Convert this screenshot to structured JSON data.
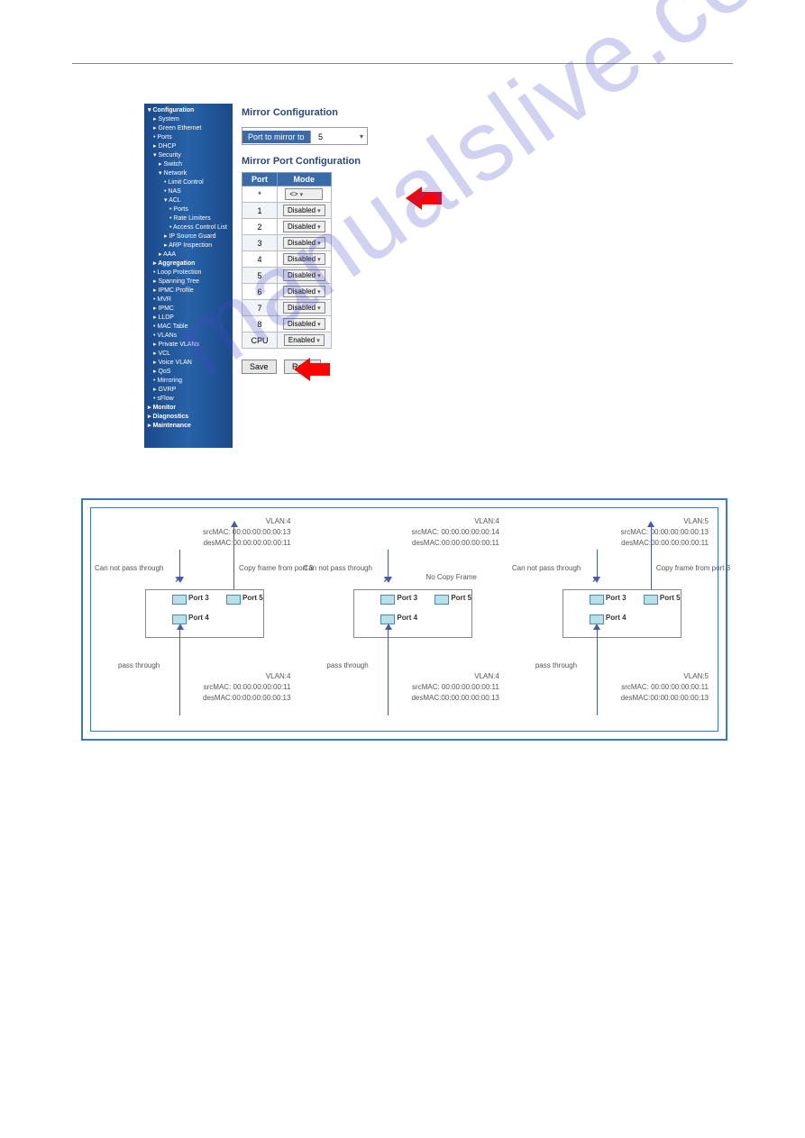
{
  "sidebar": {
    "title": "▾ Configuration",
    "items": [
      {
        "t": "▸ System",
        "c": "i1"
      },
      {
        "t": "▸ Green Ethernet",
        "c": "i1"
      },
      {
        "t": "• Ports",
        "c": "i1"
      },
      {
        "t": "▸ DHCP",
        "c": "i1"
      },
      {
        "t": "▾ Security",
        "c": "i1"
      },
      {
        "t": "▸ Switch",
        "c": "i2"
      },
      {
        "t": "▾ Network",
        "c": "i2"
      },
      {
        "t": "• Limit Control",
        "c": "i3"
      },
      {
        "t": "• NAS",
        "c": "i3"
      },
      {
        "t": "▾ ACL",
        "c": "i3"
      },
      {
        "t": "• Ports",
        "c": "i4"
      },
      {
        "t": "• Rate Limiters",
        "c": "i4"
      },
      {
        "t": "• Access Control List",
        "c": "i4"
      },
      {
        "t": "▸ IP Source Guard",
        "c": "i3"
      },
      {
        "t": "▸ ARP Inspection",
        "c": "i3"
      },
      {
        "t": "▸ AAA",
        "c": "i2"
      },
      {
        "t": "▸ Aggregation",
        "c": "i1 b"
      },
      {
        "t": "• Loop Protection",
        "c": "i1"
      },
      {
        "t": "▸ Spanning Tree",
        "c": "i1"
      },
      {
        "t": "▸ IPMC Profile",
        "c": "i1"
      },
      {
        "t": "• MVR",
        "c": "i1"
      },
      {
        "t": "▸ IPMC",
        "c": "i1"
      },
      {
        "t": "▸ LLDP",
        "c": "i1"
      },
      {
        "t": "• MAC Table",
        "c": "i1"
      },
      {
        "t": "• VLANs",
        "c": "i1"
      },
      {
        "t": "▸ Private VLANs",
        "c": "i1"
      },
      {
        "t": "▸ VCL",
        "c": "i1"
      },
      {
        "t": "▸ Voice VLAN",
        "c": "i1"
      },
      {
        "t": "▸ QoS",
        "c": "i1"
      },
      {
        "t": "• Mirroring",
        "c": "i1"
      },
      {
        "t": "▸ GVRP",
        "c": "i1"
      },
      {
        "t": "• sFlow",
        "c": "i1"
      }
    ],
    "bottom": [
      "▸ Monitor",
      "▸ Diagnostics",
      "▸ Maintenance"
    ]
  },
  "mirror": {
    "title": "Mirror Configuration",
    "ptom_label": "Port to mirror to",
    "ptom_value": "5",
    "subtitle": "Mirror Port Configuration",
    "th_port": "Port",
    "th_mode": "Mode",
    "rows": [
      {
        "p": "*",
        "m": "<>"
      },
      {
        "p": "1",
        "m": "Disabled"
      },
      {
        "p": "2",
        "m": "Disabled"
      },
      {
        "p": "3",
        "m": "Disabled"
      },
      {
        "p": "4",
        "m": "Disabled"
      },
      {
        "p": "5",
        "m": "Disabled"
      },
      {
        "p": "6",
        "m": "Disabled"
      },
      {
        "p": "7",
        "m": "Disabled"
      },
      {
        "p": "8",
        "m": "Disabled"
      },
      {
        "p": "CPU",
        "m": "Enabled"
      }
    ],
    "save": "Save",
    "reset": "Reset"
  },
  "diagram": {
    "panels": [
      {
        "vlan": "VLAN:4",
        "top_src": "srcMAC: 00:00:00:00:00:13",
        "top_des": "desMAC:00:00:00:00:00:11",
        "left_note": "Can not pass through",
        "right_note": "Copy frame from port 3",
        "bot_note": "pass through",
        "bot_vlan": "VLAN:4",
        "bot_src": "srcMAC: 00:00:00:00:00:11",
        "bot_des": "desMAC:00:00:00:00:00:13",
        "copy_arrow": true
      },
      {
        "vlan": "VLAN:4",
        "top_src": "srcMAC: 00:00:00:00:00:14",
        "top_des": "desMAC:00:00:00:00:00:11",
        "left_note": "Can not pass through",
        "right_note": "No Copy Frame",
        "bot_note": "pass through",
        "bot_vlan": "VLAN:4",
        "bot_src": "srcMAC: 00:00:00:00:00:11",
        "bot_des": "desMAC:00:00:00:00:00:13",
        "copy_arrow": false
      },
      {
        "vlan": "VLAN:5",
        "top_src": "srcMAC: 00:00:00:00:00:13",
        "top_des": "desMAC:00:00:00:00:00:11",
        "left_note": "Can not pass through",
        "right_note": "Copy frame from port 3",
        "bot_note": "pass through",
        "bot_vlan": "VLAN:5",
        "bot_src": "srcMAC: 00:00:00:00:00:11",
        "bot_des": "desMAC:00:00:00:00:00:13",
        "copy_arrow": true
      }
    ],
    "port3": "Port 3",
    "port4": "Port 4",
    "port5": "Port 5"
  },
  "watermark": "manualslive.com"
}
